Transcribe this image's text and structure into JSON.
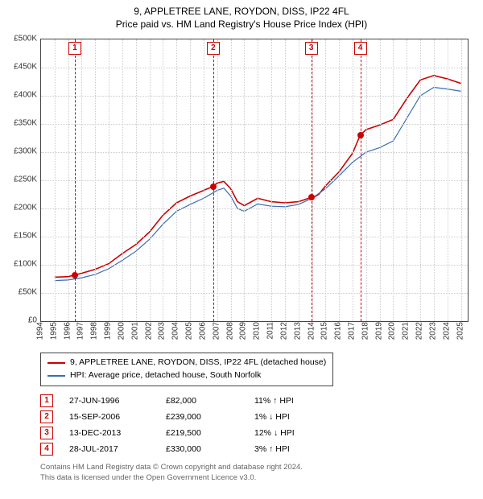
{
  "title_line1": "9, APPLETREE LANE, ROYDON, DISS, IP22 4FL",
  "title_line2": "Price paid vs. HM Land Registry's House Price Index (HPI)",
  "chart": {
    "type": "line",
    "ylim": [
      0,
      500000
    ],
    "ytick_step": 50000,
    "y_prefix": "£",
    "y_suffix": "K",
    "xlim": [
      1994,
      2025.5
    ],
    "xticks": [
      1994,
      1995,
      1996,
      1997,
      1998,
      1999,
      2000,
      2001,
      2002,
      2003,
      2004,
      2005,
      2006,
      2007,
      2008,
      2009,
      2010,
      2011,
      2012,
      2013,
      2014,
      2015,
      2016,
      2017,
      2018,
      2019,
      2020,
      2021,
      2022,
      2023,
      2024,
      2025
    ],
    "background_color": "#ffffff",
    "grid_color": "#cccccc",
    "axis_color": "#444444",
    "label_fontsize": 10,
    "title_fontsize": 12,
    "series": [
      {
        "name": "property",
        "label": "9, APPLETREE LANE, ROYDON, DISS, IP22 4FL (detached house)",
        "color": "#cc0000",
        "line_width": 1.6,
        "points": [
          [
            1995.0,
            78000
          ],
          [
            1996.0,
            79000
          ],
          [
            1996.5,
            82000
          ],
          [
            1997.0,
            85000
          ],
          [
            1998.0,
            92000
          ],
          [
            1999.0,
            102000
          ],
          [
            2000.0,
            120000
          ],
          [
            2001.0,
            136000
          ],
          [
            2002.0,
            158000
          ],
          [
            2003.0,
            188000
          ],
          [
            2004.0,
            210000
          ],
          [
            2005.0,
            222000
          ],
          [
            2006.0,
            232000
          ],
          [
            2006.7,
            239000
          ],
          [
            2007.0,
            245000
          ],
          [
            2007.5,
            248000
          ],
          [
            2008.0,
            235000
          ],
          [
            2008.5,
            212000
          ],
          [
            2009.0,
            205000
          ],
          [
            2010.0,
            218000
          ],
          [
            2011.0,
            212000
          ],
          [
            2012.0,
            210000
          ],
          [
            2013.0,
            212000
          ],
          [
            2013.95,
            219500
          ],
          [
            2014.0,
            218000
          ],
          [
            2014.5,
            225000
          ],
          [
            2015.0,
            240000
          ],
          [
            2016.0,
            265000
          ],
          [
            2017.0,
            298000
          ],
          [
            2017.56,
            330000
          ],
          [
            2018.0,
            340000
          ],
          [
            2019.0,
            348000
          ],
          [
            2020.0,
            358000
          ],
          [
            2021.0,
            395000
          ],
          [
            2022.0,
            428000
          ],
          [
            2023.0,
            436000
          ],
          [
            2024.0,
            430000
          ],
          [
            2025.0,
            422000
          ]
        ]
      },
      {
        "name": "hpi",
        "label": "HPI: Average price, detached house, South Norfolk",
        "color": "#3b6db5",
        "line_width": 1.2,
        "points": [
          [
            1995.0,
            72000
          ],
          [
            1996.0,
            73000
          ],
          [
            1997.0,
            77000
          ],
          [
            1998.0,
            83000
          ],
          [
            1999.0,
            93000
          ],
          [
            2000.0,
            108000
          ],
          [
            2001.0,
            124000
          ],
          [
            2002.0,
            145000
          ],
          [
            2003.0,
            172000
          ],
          [
            2004.0,
            195000
          ],
          [
            2005.0,
            207000
          ],
          [
            2006.0,
            218000
          ],
          [
            2007.0,
            232000
          ],
          [
            2007.5,
            236000
          ],
          [
            2008.0,
            222000
          ],
          [
            2008.5,
            200000
          ],
          [
            2009.0,
            195000
          ],
          [
            2010.0,
            208000
          ],
          [
            2011.0,
            204000
          ],
          [
            2012.0,
            203000
          ],
          [
            2013.0,
            207000
          ],
          [
            2014.0,
            218000
          ],
          [
            2015.0,
            235000
          ],
          [
            2016.0,
            258000
          ],
          [
            2017.0,
            282000
          ],
          [
            2018.0,
            300000
          ],
          [
            2019.0,
            308000
          ],
          [
            2020.0,
            320000
          ],
          [
            2021.0,
            360000
          ],
          [
            2022.0,
            400000
          ],
          [
            2023.0,
            415000
          ],
          [
            2024.0,
            412000
          ],
          [
            2025.0,
            408000
          ]
        ]
      }
    ],
    "markers": [
      {
        "n": "1",
        "date": "27-JUN-1996",
        "x": 1996.49,
        "price": 82000,
        "price_label": "£82,000",
        "diff": "11%",
        "arrow": "↑",
        "vs": "HPI"
      },
      {
        "n": "2",
        "date": "15-SEP-2006",
        "x": 2006.71,
        "price": 239000,
        "price_label": "£239,000",
        "diff": "1%",
        "arrow": "↓",
        "vs": "HPI"
      },
      {
        "n": "3",
        "date": "13-DEC-2013",
        "x": 2013.95,
        "price": 219500,
        "price_label": "£219,500",
        "diff": "12%",
        "arrow": "↓",
        "vs": "HPI"
      },
      {
        "n": "4",
        "date": "28-JUL-2017",
        "x": 2017.57,
        "price": 330000,
        "price_label": "£330,000",
        "diff": "3%",
        "arrow": "↑",
        "vs": "HPI"
      }
    ]
  },
  "legend": {
    "border_color": "#444444"
  },
  "footer_line1": "Contains HM Land Registry data © Crown copyright and database right 2024.",
  "footer_line2": "This data is licensed under the Open Government Licence v3.0."
}
